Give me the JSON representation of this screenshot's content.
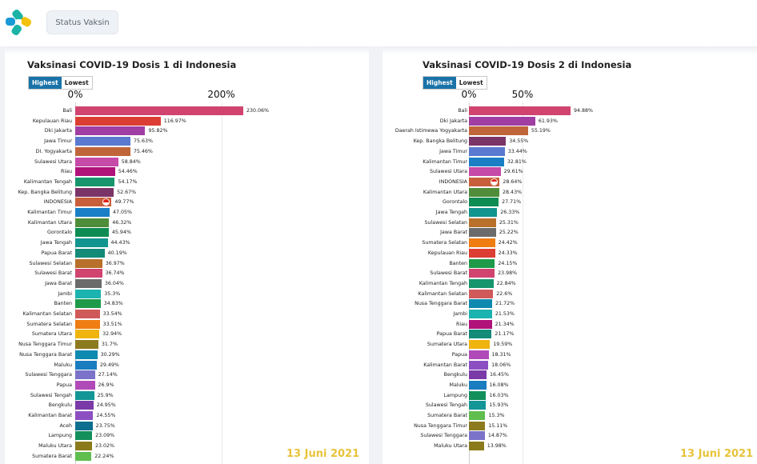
{
  "header": {
    "status_button": "Status Vaksin"
  },
  "panels": [
    {
      "title": "Vaksinasi COVID-19 Dosis 1 di Indonesia",
      "toggle": {
        "highest": "Highest",
        "lowest": "Lowest"
      },
      "axis_ticks": [
        "0%",
        "200%"
      ],
      "axis_max": 230.06,
      "date": "13 Juni 2021",
      "rows": [
        {
          "label": "Bali",
          "value": 230.06,
          "display": "230.06%",
          "color": "#d0446f"
        },
        {
          "label": "Kepulauan Riau",
          "value": 116.97,
          "display": "116.97%",
          "color": "#dc3e34"
        },
        {
          "label": "Dki Jakarta",
          "value": 95.82,
          "display": "95.82%",
          "color": "#a03ea3"
        },
        {
          "label": "Jawa Timur",
          "value": 75.63,
          "display": "75.63%",
          "color": "#5a79d0"
        },
        {
          "label": "DI. Yogyakarta",
          "value": 75.46,
          "display": "75.46%",
          "color": "#c0653a"
        },
        {
          "label": "Sulawesi Utara",
          "value": 58.84,
          "display": "58.84%",
          "color": "#c64aa8"
        },
        {
          "label": "Riau",
          "value": 54.46,
          "display": "54.46%",
          "color": "#b0127a"
        },
        {
          "label": "Kalimantan Tengah",
          "value": 54.17,
          "display": "54.17%",
          "color": "#17956d"
        },
        {
          "label": "Kep. Bangka Belitung",
          "value": 52.67,
          "display": "52.67%",
          "color": "#7b3467"
        },
        {
          "label": "INDONESIA",
          "value": 49.77,
          "display": "49.77%",
          "color": "#c85f3a",
          "flag": true
        },
        {
          "label": "Kalimantan Timur",
          "value": 47.05,
          "display": "47.05%",
          "color": "#1b7fc6"
        },
        {
          "label": "Kalimantan Utara",
          "value": 46.32,
          "display": "46.32%",
          "color": "#4f8d3a"
        },
        {
          "label": "Gorontalo",
          "value": 45.94,
          "display": "45.94%",
          "color": "#0e8c53"
        },
        {
          "label": "Jawa Tengah",
          "value": 44.43,
          "display": "44.43%",
          "color": "#12948f"
        },
        {
          "label": "Papua Barat",
          "value": 40.19,
          "display": "40.19%",
          "color": "#148a79"
        },
        {
          "label": "Sulawesi Selatan",
          "value": 36.97,
          "display": "36.97%",
          "color": "#b8702a"
        },
        {
          "label": "Sulawesi Barat",
          "value": 36.74,
          "display": "36.74%",
          "color": "#d0446f"
        },
        {
          "label": "Jawa Barat",
          "value": 36.04,
          "display": "36.04%",
          "color": "#6b6b6b"
        },
        {
          "label": "Jambi",
          "value": 35.3,
          "display": "35.3%",
          "color": "#1bb3b0"
        },
        {
          "label": "Banten",
          "value": 34.83,
          "display": "34.83%",
          "color": "#1e9a4a"
        },
        {
          "label": "Kalimantan Selatan",
          "value": 33.54,
          "display": "33.54%",
          "color": "#d05a5a"
        },
        {
          "label": "Sumatera Selatan",
          "value": 33.51,
          "display": "33.51%",
          "color": "#ef7d12"
        },
        {
          "label": "Sumatera Utara",
          "value": 32.94,
          "display": "32.94%",
          "color": "#f0b40e"
        },
        {
          "label": "Nusa Tenggara Timur",
          "value": 31.7,
          "display": "31.7%",
          "color": "#8c7a1f"
        },
        {
          "label": "Nusa Tenggara Barat",
          "value": 30.29,
          "display": "30.29%",
          "color": "#0e89b0"
        },
        {
          "label": "Maluku",
          "value": 29.49,
          "display": "29.49%",
          "color": "#1a7dc0"
        },
        {
          "label": "Sulawesi Tenggara",
          "value": 27.14,
          "display": "27.14%",
          "color": "#7a73c9"
        },
        {
          "label": "Papua",
          "value": 26.9,
          "display": "26.9%",
          "color": "#b04ab8"
        },
        {
          "label": "Sulawesi Tengah",
          "value": 25.9,
          "display": "25.9%",
          "color": "#149596"
        },
        {
          "label": "Bengkulu",
          "value": 24.95,
          "display": "24.95%",
          "color": "#7a3aa8"
        },
        {
          "label": "Kalimantan Barat",
          "value": 24.55,
          "display": "24.55%",
          "color": "#8c4fc2"
        },
        {
          "label": "Aceh",
          "value": 23.75,
          "display": "23.75%",
          "color": "#0f6f8f"
        },
        {
          "label": "Lampung",
          "value": 23.09,
          "display": "23.09%",
          "color": "#138f5c"
        },
        {
          "label": "Maluku Utara",
          "value": 23.02,
          "display": "23.02%",
          "color": "#8a7a1a"
        },
        {
          "label": "Sumatera Barat",
          "value": 22.24,
          "display": "22.24%",
          "color": "#5fbe4e"
        }
      ]
    },
    {
      "title": "Vaksinasi COVID-19 Dosis 2 di Indonesia",
      "toggle": {
        "highest": "Highest",
        "lowest": "Lowest"
      },
      "axis_ticks": [
        "0%",
        "50%"
      ],
      "axis_max": 94.88,
      "date": "13 Juni 2021",
      "rows": [
        {
          "label": "Bali",
          "value": 94.88,
          "display": "94.88%",
          "color": "#d0446f"
        },
        {
          "label": "Dki Jakarta",
          "value": 61.93,
          "display": "61.93%",
          "color": "#a03ea3"
        },
        {
          "label": "Daerah Istimewa Yogyakarta",
          "value": 55.19,
          "display": "55.19%",
          "color": "#c0653a"
        },
        {
          "label": "Kep. Bangka Belitung",
          "value": 34.55,
          "display": "34.55%",
          "color": "#7b3467"
        },
        {
          "label": "Jawa Timur",
          "value": 33.44,
          "display": "33.44%",
          "color": "#5a79d0"
        },
        {
          "label": "Kalimantan Timur",
          "value": 32.81,
          "display": "32.81%",
          "color": "#1b7fc6"
        },
        {
          "label": "Sulawesi Utara",
          "value": 29.61,
          "display": "29.61%",
          "color": "#c64aa8"
        },
        {
          "label": "INDONESIA",
          "value": 28.64,
          "display": "28.64%",
          "color": "#c85f3a",
          "flag": true
        },
        {
          "label": "Kalimantan Utara",
          "value": 28.43,
          "display": "28.43%",
          "color": "#4f8d3a"
        },
        {
          "label": "Gorontalo",
          "value": 27.71,
          "display": "27.71%",
          "color": "#0e8c53"
        },
        {
          "label": "Jawa Tengah",
          "value": 26.33,
          "display": "26.33%",
          "color": "#12948f"
        },
        {
          "label": "Sulawesi Selatan",
          "value": 25.31,
          "display": "25.31%",
          "color": "#b8702a"
        },
        {
          "label": "Jawa Barat",
          "value": 25.22,
          "display": "25.22%",
          "color": "#6b6b6b"
        },
        {
          "label": "Sumatera Selatan",
          "value": 24.42,
          "display": "24.42%",
          "color": "#ef7d12"
        },
        {
          "label": "Kepulauan Riau",
          "value": 24.33,
          "display": "24.33%",
          "color": "#dc3e34"
        },
        {
          "label": "Banten",
          "value": 24.15,
          "display": "24.15%",
          "color": "#1e9a4a"
        },
        {
          "label": "Sulawesi Barat",
          "value": 23.98,
          "display": "23.98%",
          "color": "#d0446f"
        },
        {
          "label": "Kalimantan Tengah",
          "value": 22.84,
          "display": "22.84%",
          "color": "#17956d"
        },
        {
          "label": "Kalimantan Selatan",
          "value": 22.6,
          "display": "22.6%",
          "color": "#d05a5a"
        },
        {
          "label": "Nusa Tenggara Barat",
          "value": 21.72,
          "display": "21.72%",
          "color": "#0e89b0"
        },
        {
          "label": "Jambi",
          "value": 21.53,
          "display": "21.53%",
          "color": "#1bb3b0"
        },
        {
          "label": "Riau",
          "value": 21.34,
          "display": "21.34%",
          "color": "#b0127a"
        },
        {
          "label": "Papua Barat",
          "value": 21.17,
          "display": "21.17%",
          "color": "#148a79"
        },
        {
          "label": "Sumatera Utara",
          "value": 19.59,
          "display": "19.59%",
          "color": "#f0b40e"
        },
        {
          "label": "Papua",
          "value": 18.31,
          "display": "18.31%",
          "color": "#b04ab8"
        },
        {
          "label": "Kalimantan Barat",
          "value": 18.06,
          "display": "18.06%",
          "color": "#8c4fc2"
        },
        {
          "label": "Bengkulu",
          "value": 16.45,
          "display": "16.45%",
          "color": "#7a3aa8"
        },
        {
          "label": "Maluku",
          "value": 16.08,
          "display": "16.08%",
          "color": "#1a7dc0"
        },
        {
          "label": "Lampung",
          "value": 16.03,
          "display": "16.03%",
          "color": "#138f5c"
        },
        {
          "label": "Sulawesi Tengah",
          "value": 15.93,
          "display": "15.93%",
          "color": "#149596"
        },
        {
          "label": "Sumatera Barat",
          "value": 15.3,
          "display": "15.3%",
          "color": "#5fbe4e"
        },
        {
          "label": "Nusa Tenggara Timur",
          "value": 15.11,
          "display": "15.11%",
          "color": "#8c7a1f"
        },
        {
          "label": "Sulawesi Tenggara",
          "value": 14.87,
          "display": "14.87%",
          "color": "#7a73c9"
        },
        {
          "label": "Maluku Utara",
          "value": 13.98,
          "display": "13.98%",
          "color": "#8a7a1a"
        }
      ]
    }
  ]
}
